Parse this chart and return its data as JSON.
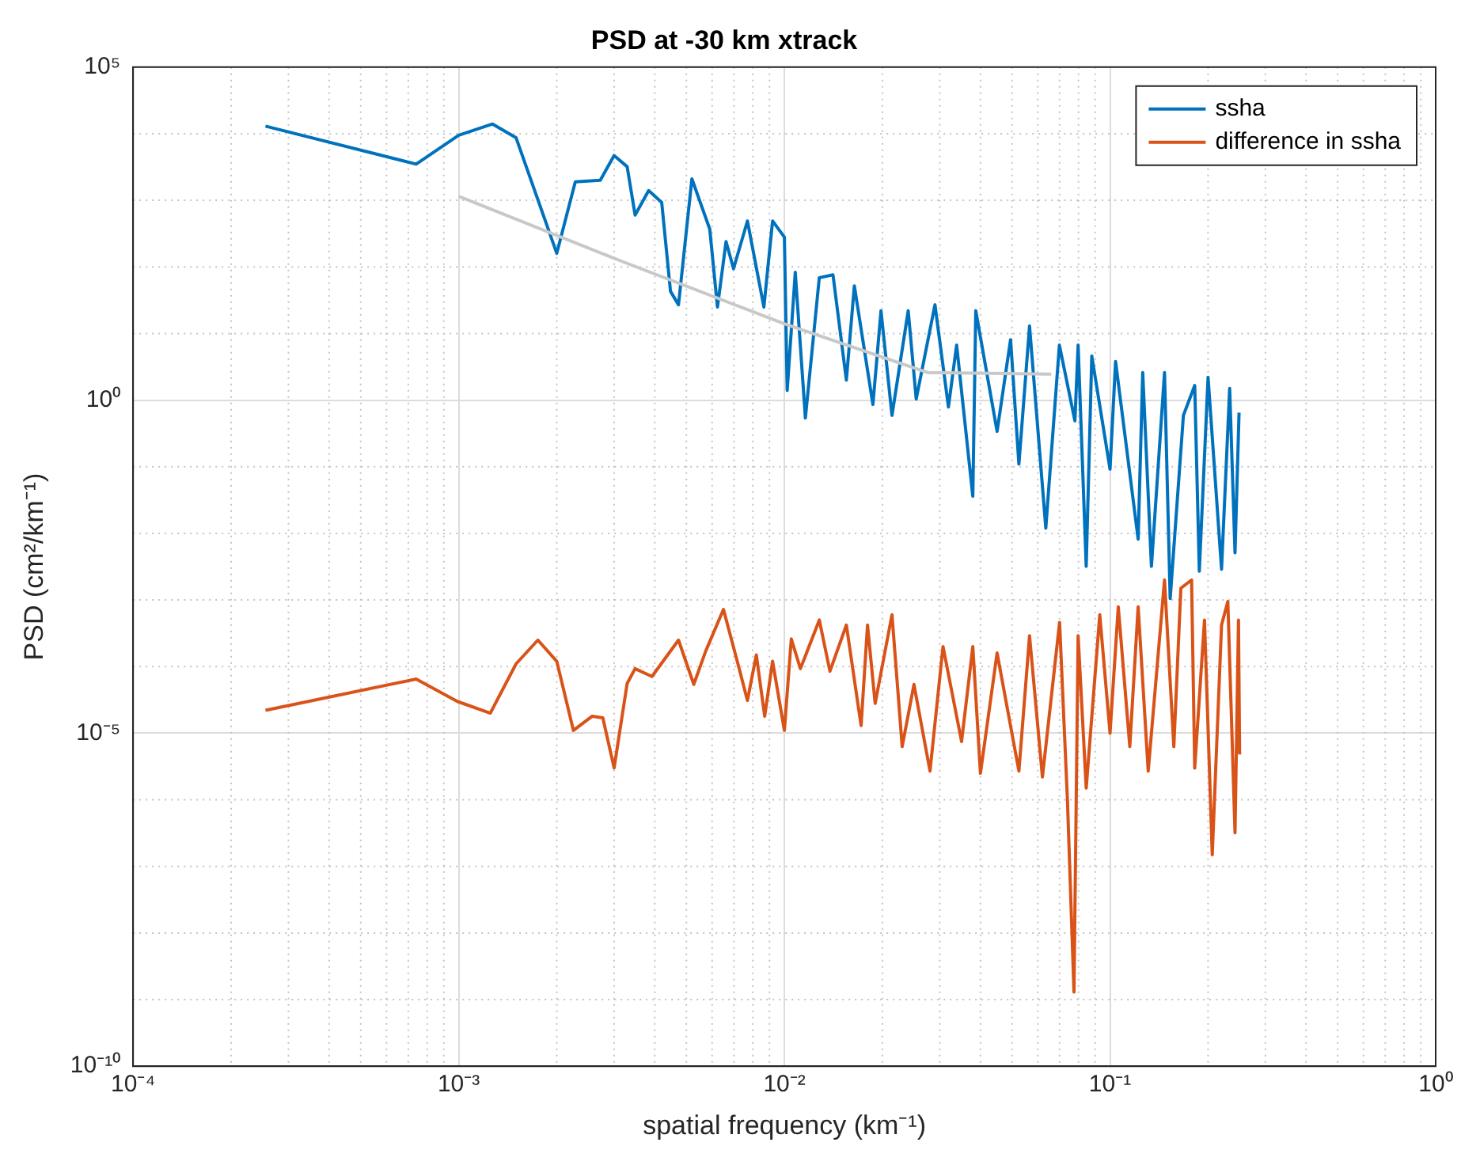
{
  "chart_data": {
    "type": "line",
    "title": "PSD at -30 km xtrack",
    "xlabel": "spatial frequency (km⁻¹)",
    "ylabel": "PSD (cm²/km⁻¹)",
    "log": "xy",
    "grid": true,
    "legend": "top right",
    "marker": "none",
    "line_style": "solid",
    "xlim": [
      0.0001,
      1
    ],
    "ylim": [
      1e-10,
      100000
    ],
    "xticks": [
      {
        "value": 0.0001,
        "label": "10⁻⁴"
      },
      {
        "value": 0.001,
        "label": "10⁻³"
      },
      {
        "value": 0.01,
        "label": "10⁻²"
      },
      {
        "value": 0.1,
        "label": "10⁻¹"
      },
      {
        "value": 1,
        "label": "10⁰"
      }
    ],
    "yticks": [
      {
        "value": 1e-10,
        "label": "10⁻¹⁰"
      },
      {
        "value": 1e-05,
        "label": "10⁻⁵"
      },
      {
        "value": 1,
        "label": "10⁰"
      },
      {
        "value": 100000,
        "label": "10⁵"
      }
    ],
    "series": [
      {
        "name": "ssha",
        "color": "#0072bd",
        "x": [
          0.000255,
          0.00074,
          0.001,
          0.00127,
          0.0015,
          0.002,
          0.00228,
          0.00272,
          0.003,
          0.00329,
          0.00348,
          0.00383,
          0.0042,
          0.00447,
          0.00473,
          0.0052,
          0.0059,
          0.00623,
          0.00662,
          0.00698,
          0.0077,
          0.00865,
          0.0092,
          0.01,
          0.0102,
          0.0108,
          0.0116,
          0.0128,
          0.0141,
          0.0155,
          0.0164,
          0.0187,
          0.0198,
          0.0214,
          0.024,
          0.0254,
          0.029,
          0.0319,
          0.0338,
          0.0379,
          0.0387,
          0.045,
          0.0495,
          0.0525,
          0.0566,
          0.0635,
          0.0699,
          0.078,
          0.0798,
          0.0845,
          0.0879,
          0.1,
          0.104,
          0.122,
          0.126,
          0.134,
          0.147,
          0.153,
          0.168,
          0.182,
          0.188,
          0.2,
          0.22,
          0.233,
          0.242,
          0.249
        ],
        "values": [
          13000,
          3500,
          9500,
          14000,
          8700,
          160,
          1900,
          2000,
          4700,
          3200,
          600,
          1400,
          930,
          43,
          27,
          2100,
          370,
          25,
          240,
          94,
          490,
          25,
          490,
          280,
          1.4,
          83,
          0.54,
          69,
          76,
          2,
          52,
          0.86,
          22,
          0.59,
          22,
          1.04,
          27,
          0.79,
          6.7,
          0.036,
          22,
          0.34,
          8.1,
          0.11,
          13,
          0.012,
          6.7,
          0.49,
          6.7,
          0.0032,
          4.6,
          0.092,
          3.8,
          0.0082,
          2.6,
          0.0032,
          2.6,
          0.00105,
          0.59,
          1.66,
          0.0027,
          2.2,
          0.0029,
          1.5,
          0.0051,
          0.65
        ]
      },
      {
        "name": "difference in ssha",
        "color": "#d95319",
        "x": [
          0.000255,
          0.00074,
          0.00099,
          0.00125,
          0.0015,
          0.00175,
          0.002,
          0.00225,
          0.00257,
          0.00277,
          0.003,
          0.00329,
          0.00348,
          0.00392,
          0.00473,
          0.00527,
          0.00573,
          0.0065,
          0.0072,
          0.0077,
          0.0082,
          0.0087,
          0.0092,
          0.01,
          0.0105,
          0.0112,
          0.0128,
          0.0138,
          0.0155,
          0.0172,
          0.018,
          0.019,
          0.0214,
          0.023,
          0.025,
          0.028,
          0.0307,
          0.035,
          0.0379,
          0.04,
          0.045,
          0.0525,
          0.0566,
          0.062,
          0.07,
          0.074,
          0.0775,
          0.0798,
          0.0845,
          0.093,
          0.1,
          0.106,
          0.115,
          0.122,
          0.131,
          0.147,
          0.157,
          0.165,
          0.178,
          0.182,
          0.195,
          0.206,
          0.22,
          0.23,
          0.242,
          0.248,
          0.25
        ],
        "values": [
          2.2e-05,
          6.5e-05,
          3e-05,
          2e-05,
          0.00011,
          0.00025,
          0.00012,
          1.1e-05,
          1.8e-05,
          1.7e-05,
          3e-06,
          5.6e-05,
          9.3e-05,
          7.1e-05,
          0.00025,
          5.4e-05,
          0.00017,
          0.00072,
          0.00011,
          3.1e-05,
          0.00015,
          1.8e-05,
          0.00012,
          1.1e-05,
          0.00026,
          9.3e-05,
          0.0005,
          8.5e-05,
          0.00042,
          1.3e-05,
          0.00042,
          2.8e-05,
          0.0006,
          6.3e-06,
          5.4e-05,
          2.7e-06,
          0.0002,
          7.5e-06,
          0.0002,
          2.5e-06,
          0.00016,
          2.7e-06,
          0.00029,
          2.2e-06,
          0.00046,
          9.8e-07,
          1.3e-09,
          0.00029,
          1.5e-06,
          0.0006,
          1e-05,
          0.00079,
          6.3e-06,
          0.00079,
          2.7e-06,
          0.002,
          6.3e-06,
          0.0015,
          0.002,
          3e-06,
          0.0005,
          1.5e-07,
          0.00042,
          0.00095,
          3.2e-07,
          0.0005,
          4.8e-06
        ]
      },
      {
        "color": "#c8c8c8",
        "x": [
          0.001,
          0.00316,
          0.01,
          0.0275,
          0.066
        ],
        "values": [
          1150,
          122,
          14,
          2.6,
          2.45
        ]
      }
    ]
  }
}
